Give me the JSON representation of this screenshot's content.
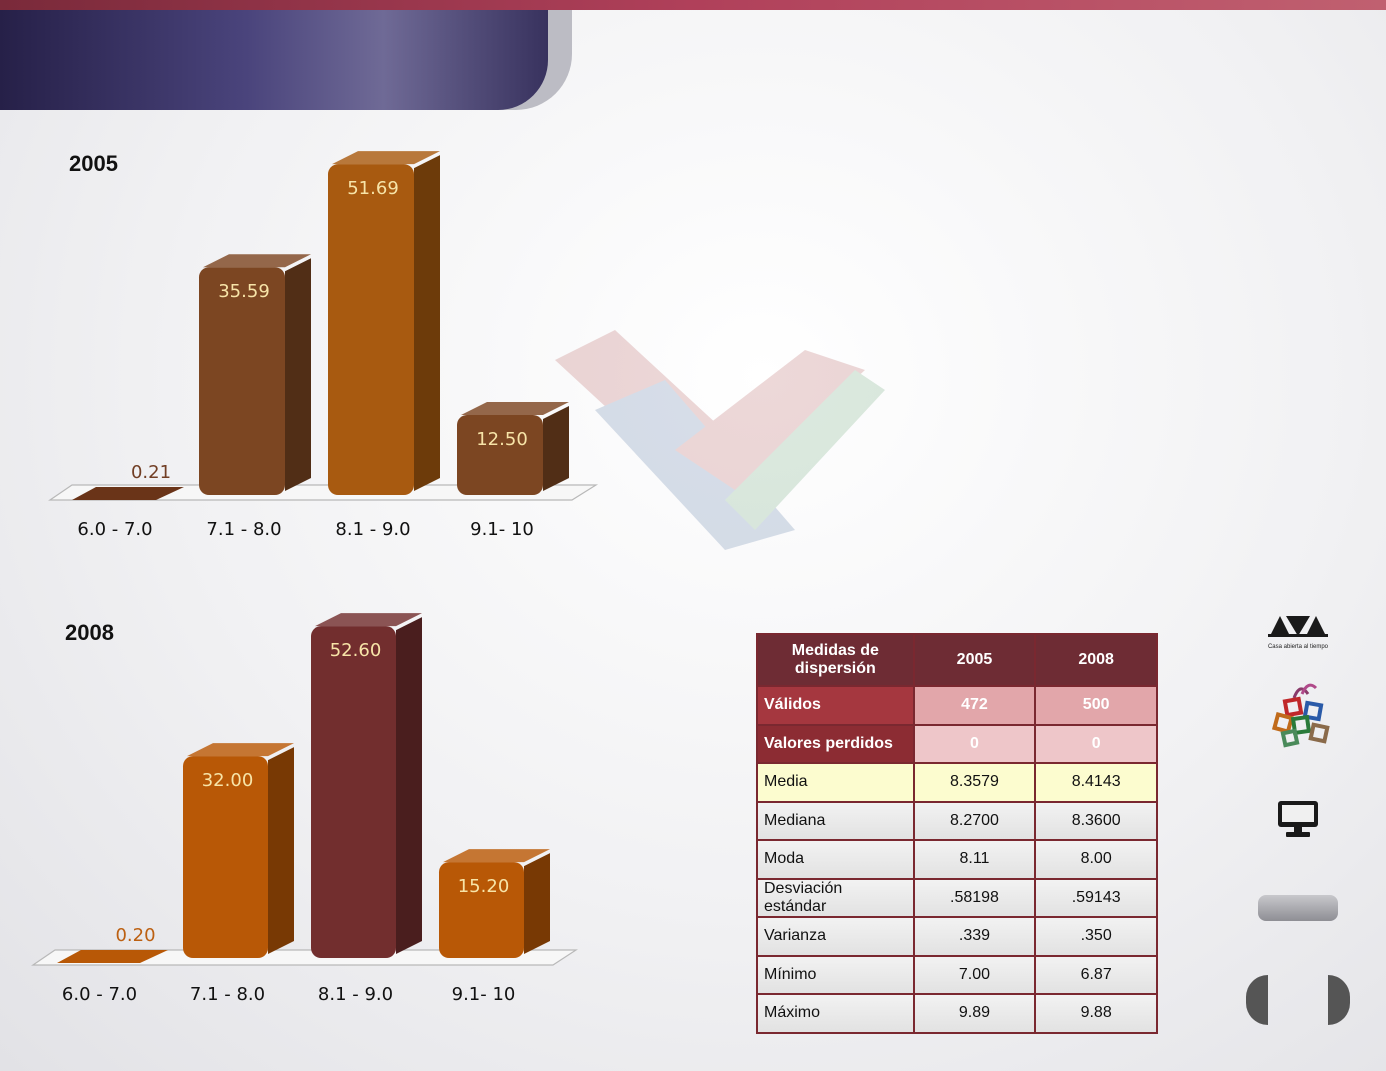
{
  "chart_data": [
    {
      "type": "bar",
      "title": "2005",
      "categories": [
        "6.0 - 7.0",
        "7.1 - 8.0",
        "8.1 - 9.0",
        "9.1- 10"
      ],
      "values": [
        0.21,
        35.59,
        51.69,
        12.5
      ],
      "labels": [
        "0.21",
        "35.59",
        "51.69",
        "12.50"
      ],
      "colors": [
        "#6a3418",
        "#7c4622",
        "#a85a10",
        "#7c4622"
      ],
      "ylim": [
        0,
        55
      ],
      "grid": false,
      "legend": "none"
    },
    {
      "type": "bar",
      "title": "2008",
      "categories": [
        "6.0 - 7.0",
        "7.1 - 8.0",
        "8.1 - 9.0",
        "9.1- 10"
      ],
      "values": [
        0.2,
        32.0,
        52.6,
        15.2
      ],
      "labels": [
        "0.20",
        "32.00",
        "52.60",
        "15.20"
      ],
      "colors": [
        "#b85806",
        "#b85806",
        "#722e2e",
        "#b85806"
      ],
      "ylim": [
        0,
        55
      ],
      "grid": false,
      "legend": "none"
    }
  ],
  "stats_table": {
    "header": [
      "Medidas  de dispersión",
      "2005",
      "2008"
    ],
    "rows": [
      {
        "label": "Válidos",
        "v2005": "472",
        "v2008": "500"
      },
      {
        "label": "Valores perdidos",
        "v2005": "0",
        "v2008": "0"
      },
      {
        "label": "Media",
        "v2005": "8.3579",
        "v2008": "8.4143"
      },
      {
        "label": "Mediana",
        "v2005": "8.2700",
        "v2008": "8.3600"
      },
      {
        "label": "Moda",
        "v2005": "8.11",
        "v2008": "8.00"
      },
      {
        "label": "Desviación  estándar",
        "v2005": ".58198",
        "v2008": ".59143"
      },
      {
        "label": "Varianza",
        "v2005": ".339",
        "v2008": ".350"
      },
      {
        "label": "Mínimo",
        "v2005": "7.00",
        "v2008": "6.87"
      },
      {
        "label": "Máximo",
        "v2005": "9.89",
        "v2008": "9.88"
      }
    ]
  },
  "sidebar": {
    "logo_text": "Casa abierta al tiempo",
    "icons": [
      "uam-logo-icon",
      "colored-squares-logo-icon",
      "monitor-icon"
    ]
  },
  "colors": {
    "header_band": "#3a3466",
    "table_header": "#6e2c34",
    "accent": "#a5373f"
  }
}
